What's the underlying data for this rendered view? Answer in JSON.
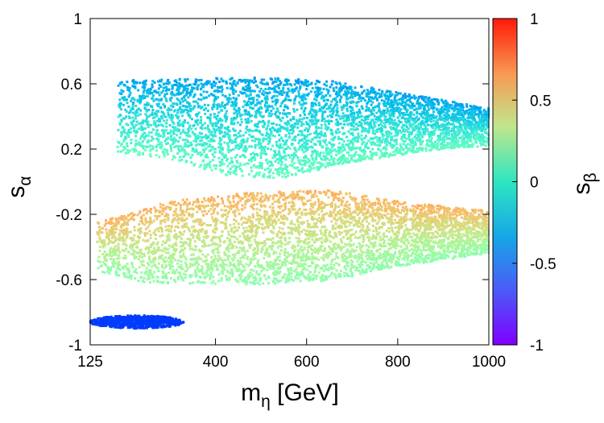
{
  "chart_data": {
    "type": "scatter",
    "title": "",
    "xlabel": {
      "base": "m",
      "subscript": "η",
      "suffix": " [GeV]"
    },
    "ylabel": {
      "base": "s",
      "subscript": "α"
    },
    "colorbar_label": {
      "base": "s",
      "subscript": "β"
    },
    "xlim": [
      125,
      1000
    ],
    "ylim": [
      -1,
      1
    ],
    "clim": [
      -1,
      1
    ],
    "grid": false,
    "colormap": "rainbow",
    "x_ticks": [
      {
        "value": 125,
        "label": "125"
      },
      {
        "value": 400,
        "label": "400"
      },
      {
        "value": 600,
        "label": "600"
      },
      {
        "value": 800,
        "label": "800"
      },
      {
        "value": 1000,
        "label": "1000"
      }
    ],
    "y_ticks": [
      {
        "value": -1,
        "label": "-1"
      },
      {
        "value": -0.6,
        "label": "-0.6"
      },
      {
        "value": -0.2,
        "label": "-0.2"
      },
      {
        "value": 0.2,
        "label": "0.2"
      },
      {
        "value": 0.6,
        "label": "0.6"
      },
      {
        "value": 1,
        "label": "1"
      }
    ],
    "colorbar_ticks": [
      {
        "value": -1,
        "label": "-1"
      },
      {
        "value": -0.5,
        "label": "-0.5"
      },
      {
        "value": 0,
        "label": "0"
      },
      {
        "value": 0.5,
        "label": "0.5"
      },
      {
        "value": 1,
        "label": "1"
      }
    ],
    "series": [
      {
        "name": "upper band",
        "x_range": [
          185,
          1000
        ],
        "y_top": [
          [
            185,
            0.62
          ],
          [
            300,
            0.63
          ],
          [
            500,
            0.64
          ],
          [
            650,
            0.62
          ],
          [
            800,
            0.55
          ],
          [
            1000,
            0.45
          ]
        ],
        "y_bottom": [
          [
            185,
            0.18
          ],
          [
            300,
            0.14
          ],
          [
            420,
            0.04
          ],
          [
            550,
            0.02
          ],
          [
            700,
            0.12
          ],
          [
            900,
            0.2
          ],
          [
            1000,
            0.22
          ]
        ],
        "color_value_range": [
          -0.55,
          -0.05
        ]
      },
      {
        "name": "lower band",
        "x_range": [
          140,
          1000
        ],
        "y_top": [
          [
            140,
            -0.25
          ],
          [
            300,
            -0.12
          ],
          [
            500,
            -0.06
          ],
          [
            650,
            -0.05
          ],
          [
            800,
            -0.12
          ],
          [
            1000,
            -0.18
          ]
        ],
        "y_bottom": [
          [
            140,
            -0.55
          ],
          [
            250,
            -0.62
          ],
          [
            500,
            -0.63
          ],
          [
            650,
            -0.61
          ],
          [
            800,
            -0.52
          ],
          [
            1000,
            -0.44
          ]
        ],
        "color_value_range": [
          0.05,
          0.55
        ]
      },
      {
        "name": "bottom cluster",
        "x_range": [
          125,
          330
        ],
        "y_range": [
          -0.9,
          -0.82
        ],
        "color_value": -0.85
      }
    ]
  }
}
